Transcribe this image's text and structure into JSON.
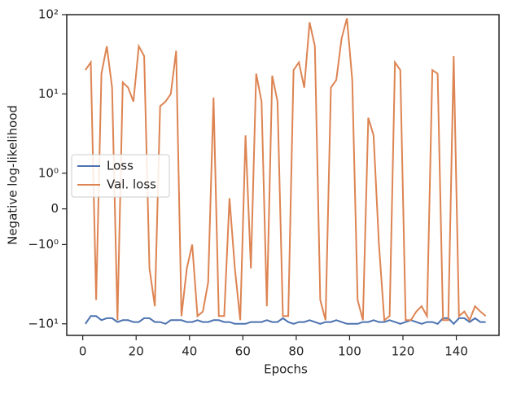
{
  "chart_data": {
    "type": "line",
    "xlabel": "Epochs",
    "ylabel": "Negative log-likelihood",
    "yscale": "symlog",
    "linthresh": 1,
    "x": [
      1,
      3,
      5,
      7,
      9,
      11,
      13,
      15,
      17,
      19,
      21,
      23,
      25,
      27,
      29,
      31,
      33,
      35,
      37,
      39,
      41,
      43,
      45,
      47,
      49,
      51,
      53,
      55,
      57,
      59,
      61,
      63,
      65,
      67,
      69,
      71,
      73,
      75,
      77,
      79,
      81,
      83,
      85,
      87,
      89,
      91,
      93,
      95,
      97,
      99,
      101,
      103,
      105,
      107,
      109,
      111,
      113,
      115,
      117,
      119,
      121,
      123,
      125,
      127,
      129,
      131,
      133,
      135,
      137,
      139,
      141,
      143,
      145,
      147,
      149,
      151
    ],
    "series": [
      {
        "name": "Loss",
        "color": "#4c72b0",
        "values": [
          -10,
          -8,
          -8,
          -9,
          -8.5,
          -8.5,
          -9.5,
          -9,
          -9,
          -9.5,
          -9.5,
          -8.5,
          -8.5,
          -9.5,
          -9.5,
          -10,
          -9,
          -9,
          -9,
          -9.5,
          -9.5,
          -9,
          -9.5,
          -9.5,
          -9,
          -9,
          -9.5,
          -9.5,
          -10,
          -10,
          -10,
          -9.5,
          -9.5,
          -9.5,
          -9,
          -9.5,
          -9.5,
          -8.5,
          -9.5,
          -10,
          -9.5,
          -9.5,
          -9,
          -9.5,
          -10,
          -9.5,
          -9.5,
          -9,
          -9.5,
          -10,
          -10,
          -10,
          -9.5,
          -9.5,
          -9,
          -9.5,
          -9.5,
          -9,
          -9.5,
          -10,
          -9.5,
          -9,
          -9.5,
          -10,
          -9.5,
          -9.5,
          -10,
          -8.5,
          -8.5,
          -10,
          -8.5,
          -8.5,
          -9.5,
          -8.5,
          -9.5,
          -9.5
        ]
      },
      {
        "name": "Val. loss",
        "color": "#dd8452",
        "values": [
          20,
          25,
          -5,
          18,
          40,
          12,
          -9,
          14,
          12,
          8,
          40,
          30,
          -2,
          -6,
          7,
          8,
          10,
          35,
          -8,
          -2,
          -1,
          -8,
          -7,
          -3,
          9,
          -8,
          -8,
          0.3,
          -2,
          -9,
          3,
          -2,
          18,
          8,
          -6,
          17,
          8,
          -8,
          -8,
          20,
          25,
          12,
          80,
          40,
          -5,
          -9,
          12,
          15,
          50,
          90,
          15,
          -5,
          -9,
          5,
          3,
          -1,
          -9,
          -8,
          25,
          20,
          -9,
          -9,
          -7,
          -6,
          -8,
          20,
          18,
          -9,
          -9,
          30,
          -8,
          -7,
          -9,
          -6,
          -7,
          -8
        ]
      }
    ],
    "xlim": [
      -6,
      156
    ],
    "xticks": [
      0,
      20,
      40,
      60,
      80,
      100,
      120,
      140
    ],
    "ylim": [
      -14,
      100
    ],
    "yticks": [
      {
        "value": 100,
        "label": "10²"
      },
      {
        "value": 10,
        "label": "10¹"
      },
      {
        "value": 1,
        "label": "10⁰"
      },
      0,
      {
        "value": -1,
        "label": "−10⁰"
      },
      {
        "value": -10,
        "label": "−10¹"
      }
    ],
    "legend": "center left"
  }
}
